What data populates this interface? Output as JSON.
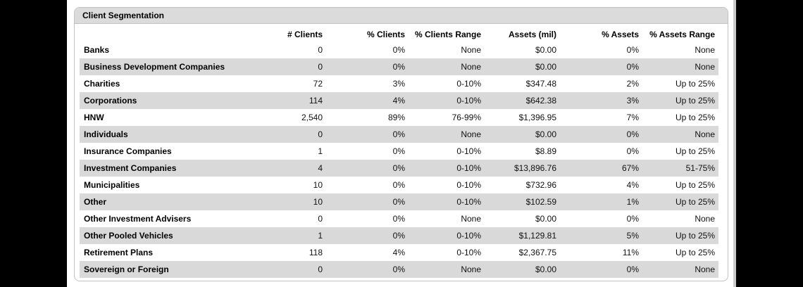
{
  "panel": {
    "title": "Client Segmentation"
  },
  "table": {
    "columns": [
      "",
      "# Clients",
      "% Clients",
      "% Clients Range",
      "Assets (mil)",
      "% Assets",
      "% Assets Range"
    ],
    "rows": [
      {
        "label": "Banks",
        "num_clients": "0",
        "pct_clients": "0%",
        "pct_clients_range": "None",
        "assets_mil": "$0.00",
        "pct_assets": "0%",
        "pct_assets_range": "None"
      },
      {
        "label": "Business Development Companies",
        "num_clients": "0",
        "pct_clients": "0%",
        "pct_clients_range": "None",
        "assets_mil": "$0.00",
        "pct_assets": "0%",
        "pct_assets_range": "None"
      },
      {
        "label": "Charities",
        "num_clients": "72",
        "pct_clients": "3%",
        "pct_clients_range": "0-10%",
        "assets_mil": "$347.48",
        "pct_assets": "2%",
        "pct_assets_range": "Up to 25%"
      },
      {
        "label": "Corporations",
        "num_clients": "114",
        "pct_clients": "4%",
        "pct_clients_range": "0-10%",
        "assets_mil": "$642.38",
        "pct_assets": "3%",
        "pct_assets_range": "Up to 25%"
      },
      {
        "label": "HNW",
        "num_clients": "2,540",
        "pct_clients": "89%",
        "pct_clients_range": "76-99%",
        "assets_mil": "$1,396.95",
        "pct_assets": "7%",
        "pct_assets_range": "Up to 25%"
      },
      {
        "label": "Individuals",
        "num_clients": "0",
        "pct_clients": "0%",
        "pct_clients_range": "None",
        "assets_mil": "$0.00",
        "pct_assets": "0%",
        "pct_assets_range": "None"
      },
      {
        "label": "Insurance Companies",
        "num_clients": "1",
        "pct_clients": "0%",
        "pct_clients_range": "0-10%",
        "assets_mil": "$8.89",
        "pct_assets": "0%",
        "pct_assets_range": "Up to 25%"
      },
      {
        "label": "Investment Companies",
        "num_clients": "4",
        "pct_clients": "0%",
        "pct_clients_range": "0-10%",
        "assets_mil": "$13,896.76",
        "pct_assets": "67%",
        "pct_assets_range": "51-75%"
      },
      {
        "label": "Municipalities",
        "num_clients": "10",
        "pct_clients": "0%",
        "pct_clients_range": "0-10%",
        "assets_mil": "$732.96",
        "pct_assets": "4%",
        "pct_assets_range": "Up to 25%"
      },
      {
        "label": "Other",
        "num_clients": "10",
        "pct_clients": "0%",
        "pct_clients_range": "0-10%",
        "assets_mil": "$102.59",
        "pct_assets": "1%",
        "pct_assets_range": "Up to 25%"
      },
      {
        "label": "Other Investment Advisers",
        "num_clients": "0",
        "pct_clients": "0%",
        "pct_clients_range": "None",
        "assets_mil": "$0.00",
        "pct_assets": "0%",
        "pct_assets_range": "None"
      },
      {
        "label": "Other Pooled Vehicles",
        "num_clients": "1",
        "pct_clients": "0%",
        "pct_clients_range": "0-10%",
        "assets_mil": "$1,129.81",
        "pct_assets": "5%",
        "pct_assets_range": "Up to 25%"
      },
      {
        "label": "Retirement Plans",
        "num_clients": "118",
        "pct_clients": "4%",
        "pct_clients_range": "0-10%",
        "assets_mil": "$2,367.75",
        "pct_assets": "11%",
        "pct_assets_range": "Up to 25%"
      },
      {
        "label": "Sovereign or Foreign",
        "num_clients": "0",
        "pct_clients": "0%",
        "pct_clients_range": "None",
        "assets_mil": "$0.00",
        "pct_assets": "0%",
        "pct_assets_range": "None"
      }
    ]
  },
  "colors": {
    "page_bg": "#000000",
    "content_bg": "#ffffff",
    "panel_border": "#c2c2c2",
    "panel_header_bg": "#dbdbdb",
    "stripe": "#d9d9d9",
    "strip": "#c9c9c9"
  }
}
